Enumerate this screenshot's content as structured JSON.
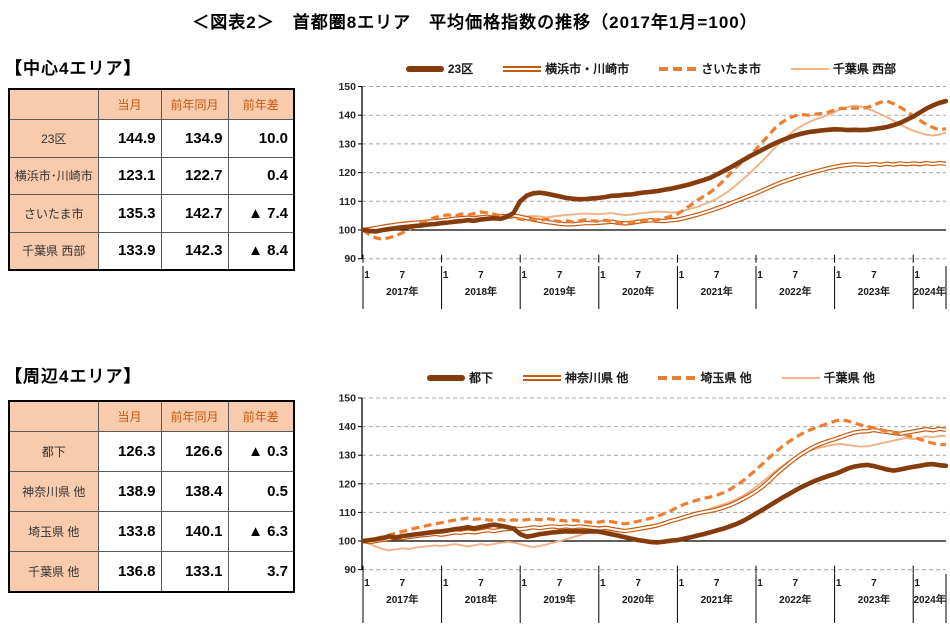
{
  "title": "＜図表2＞　首都圏8エリア　平均価格指数の推移（2017年1月=100）",
  "colors": {
    "thick_brown": "#843C0C",
    "double_orange": "#C55A11",
    "dashed_orange": "#ED7D31",
    "thin_peach": "#F4B183",
    "table_header_bg": "#F8CBAD",
    "table_header_text": "#C55A11",
    "grid_gray": "#A6A6A6",
    "baseline_black": "#000000"
  },
  "sections": [
    {
      "heading": "【中心4エリア】",
      "chart_index": 0,
      "table": {
        "headers": [
          "",
          "当月",
          "前年同月",
          "前年差"
        ],
        "rows": [
          {
            "label": "23区",
            "current": "144.9",
            "prev_year": "134.9",
            "diff": "10.0"
          },
          {
            "label": "横浜市･川崎市",
            "current": "123.1",
            "prev_year": "122.7",
            "diff": "0.4"
          },
          {
            "label": "さいたま市",
            "current": "135.3",
            "prev_year": "142.7",
            "diff": "▲ 7.4"
          },
          {
            "label": "千葉県 西部",
            "current": "133.9",
            "prev_year": "142.3",
            "diff": "▲ 8.4"
          }
        ]
      }
    },
    {
      "heading": "【周辺4エリア】",
      "chart_index": 1,
      "table": {
        "headers": [
          "",
          "当月",
          "前年同月",
          "前年差"
        ],
        "rows": [
          {
            "label": "都下",
            "current": "126.3",
            "prev_year": "126.6",
            "diff": "▲ 0.3"
          },
          {
            "label": "神奈川県 他",
            "current": "138.9",
            "prev_year": "138.4",
            "diff": "0.5"
          },
          {
            "label": "埼玉県 他",
            "current": "133.8",
            "prev_year": "140.1",
            "diff": "▲ 6.3"
          },
          {
            "label": "千葉県 他",
            "current": "136.8",
            "prev_year": "133.1",
            "diff": "3.7"
          }
        ]
      }
    }
  ],
  "chart_data": [
    {
      "type": "line",
      "title": "中心4エリア 平均価格指数",
      "x_interval": "monthly",
      "x_start": "2017-01",
      "x_end": "2024-06",
      "ylim": [
        90,
        150
      ],
      "y_ticks": [
        150,
        140,
        130,
        120,
        110,
        100,
        90
      ],
      "baseline": 100,
      "grid": "horizontal-dashed",
      "legend_position": "top",
      "x_month_ticks": [
        "1",
        "7"
      ],
      "x_year_labels": [
        "2017年",
        "2018年",
        "2019年",
        "2020年",
        "2021年",
        "2022年",
        "2023年",
        "2024年"
      ],
      "series": [
        {
          "name": "23区",
          "style": "thick",
          "color": "#843C0C",
          "values": [
            100.0,
            99.7,
            99.5,
            100.0,
            100.3,
            100.6,
            100.9,
            101.1,
            101.4,
            101.6,
            101.9,
            102.1,
            102.4,
            102.6,
            102.9,
            103.1,
            103.4,
            103.2,
            103.7,
            103.9,
            104.1,
            103.9,
            104.6,
            106.0,
            110.0,
            112.0,
            112.8,
            113.0,
            112.7,
            112.2,
            111.7,
            111.2,
            110.9,
            110.7,
            110.8,
            111.0,
            111.2,
            111.5,
            111.9,
            112.0,
            112.3,
            112.4,
            112.8,
            113.1,
            113.3,
            113.6,
            114.0,
            114.4,
            114.9,
            115.4,
            116.0,
            116.7,
            117.4,
            118.2,
            119.3,
            120.5,
            121.7,
            123.0,
            124.3,
            125.6,
            126.8,
            128.0,
            129.2,
            130.3,
            131.3,
            132.2,
            133.0,
            133.6,
            134.1,
            134.4,
            134.7,
            134.9,
            135.1,
            135.0,
            134.8,
            134.9,
            134.8,
            134.9,
            135.2,
            135.5,
            135.9,
            136.5,
            137.3,
            138.4,
            139.5,
            140.9,
            142.3,
            143.4,
            144.3,
            144.9
          ]
        },
        {
          "name": "横浜市・川崎市",
          "style": "double",
          "color": "#C55A11",
          "values": [
            100.0,
            100.3,
            100.7,
            101.1,
            101.5,
            101.8,
            102.1,
            102.3,
            102.5,
            102.7,
            102.9,
            103.1,
            103.3,
            103.6,
            103.9,
            104.1,
            104.3,
            104.0,
            104.4,
            104.6,
            104.3,
            104.7,
            104.9,
            105.1,
            104.6,
            104.1,
            103.6,
            103.2,
            102.8,
            102.5,
            102.2,
            102.0,
            102.0,
            102.2,
            102.4,
            102.4,
            102.5,
            102.7,
            102.9,
            102.5,
            102.3,
            102.5,
            102.9,
            103.2,
            103.4,
            103.2,
            103.1,
            103.4,
            103.6,
            104.1,
            104.7,
            105.3,
            106.0,
            106.7,
            107.5,
            108.3,
            109.2,
            110.1,
            111.0,
            111.9,
            112.8,
            113.8,
            114.8,
            115.8,
            116.7,
            117.5,
            118.3,
            119.0,
            119.7,
            120.3,
            120.9,
            121.5,
            122.0,
            122.4,
            122.7,
            122.9,
            122.8,
            122.7,
            123.0,
            122.7,
            123.1,
            122.8,
            123.2,
            122.9,
            123.2,
            122.9,
            123.3,
            123.0,
            123.3,
            123.1
          ]
        },
        {
          "name": "さいたま市",
          "style": "dashed",
          "color": "#ED7D31",
          "values": [
            100.0,
            98.3,
            97.2,
            96.8,
            97.3,
            98.0,
            99.0,
            100.2,
            101.4,
            102.6,
            103.6,
            104.4,
            104.9,
            105.3,
            104.9,
            105.6,
            105.2,
            105.8,
            106.3,
            106.0,
            105.5,
            105.0,
            104.6,
            104.2,
            103.8,
            103.5,
            103.8,
            103.4,
            103.7,
            103.3,
            102.9,
            103.3,
            102.8,
            103.2,
            103.6,
            103.2,
            103.0,
            103.4,
            103.0,
            102.5,
            102.2,
            102.6,
            103.1,
            103.5,
            103.2,
            103.6,
            104.1,
            104.8,
            105.5,
            107.0,
            108.6,
            110.3,
            111.7,
            113.1,
            114.9,
            117.1,
            119.5,
            121.9,
            123.9,
            125.9,
            128.2,
            130.7,
            133.2,
            135.7,
            137.6,
            139.0,
            139.8,
            140.2,
            140.0,
            140.3,
            140.6,
            141.0,
            141.8,
            142.4,
            142.2,
            142.5,
            142.4,
            142.7,
            143.6,
            144.5,
            144.9,
            144.0,
            142.8,
            141.4,
            139.8,
            138.2,
            136.8,
            135.7,
            134.9,
            135.3
          ]
        },
        {
          "name": "千葉県 西部",
          "style": "thin",
          "color": "#F4B183",
          "values": [
            100.0,
            100.4,
            100.9,
            101.4,
            101.9,
            102.3,
            102.6,
            102.9,
            103.0,
            103.2,
            103.4,
            103.6,
            103.8,
            104.1,
            104.4,
            104.7,
            104.5,
            104.8,
            105.0,
            104.7,
            104.5,
            104.3,
            104.2,
            104.3,
            104.4,
            104.7,
            104.9,
            104.7,
            104.4,
            104.7,
            105.0,
            105.2,
            105.4,
            105.6,
            105.7,
            105.6,
            105.5,
            105.7,
            105.9,
            105.5,
            105.2,
            105.4,
            105.7,
            106.0,
            106.2,
            106.4,
            106.3,
            106.1,
            106.3,
            106.8,
            107.4,
            108.1,
            108.9,
            109.8,
            110.9,
            112.3,
            113.9,
            115.7,
            117.7,
            119.7,
            121.9,
            124.1,
            126.5,
            128.9,
            131.1,
            133.1,
            134.9,
            136.3,
            137.5,
            138.5,
            139.3,
            140.1,
            141.1,
            142.1,
            142.9,
            143.3,
            143.1,
            142.3,
            141.4,
            140.4,
            139.3,
            138.1,
            136.8,
            135.6,
            134.6,
            133.8,
            133.2,
            132.9,
            133.3,
            133.9
          ]
        }
      ]
    },
    {
      "type": "line",
      "title": "周辺4エリア 平均価格指数",
      "x_interval": "monthly",
      "x_start": "2017-01",
      "x_end": "2024-06",
      "ylim": [
        90,
        150
      ],
      "y_ticks": [
        150,
        140,
        130,
        120,
        110,
        100,
        90
      ],
      "baseline": 100,
      "grid": "horizontal-dashed",
      "legend_position": "top",
      "x_month_ticks": [
        "1",
        "7"
      ],
      "x_year_labels": [
        "2017年",
        "2018年",
        "2019年",
        "2020年",
        "2021年",
        "2022年",
        "2023年",
        "2024年"
      ],
      "series": [
        {
          "name": "都下",
          "style": "thick",
          "color": "#843C0C",
          "values": [
            100.0,
            100.3,
            100.6,
            101.0,
            101.6,
            101.2,
            101.7,
            102.0,
            102.3,
            102.6,
            102.9,
            103.2,
            103.4,
            103.7,
            104.1,
            104.4,
            104.8,
            104.4,
            104.9,
            105.3,
            105.7,
            105.3,
            104.9,
            104.3,
            102.4,
            101.5,
            101.9,
            102.4,
            102.7,
            103.0,
            103.2,
            103.4,
            103.3,
            103.4,
            103.3,
            103.4,
            103.3,
            102.8,
            102.3,
            101.9,
            101.3,
            100.8,
            100.3,
            100.0,
            99.6,
            99.5,
            99.8,
            100.1,
            100.3,
            100.8,
            101.3,
            101.9,
            102.4,
            103.0,
            103.7,
            104.3,
            105.1,
            105.9,
            107.0,
            108.2,
            109.6,
            110.9,
            112.3,
            113.7,
            115.1,
            116.4,
            117.7,
            118.9,
            120.0,
            121.0,
            121.9,
            122.7,
            123.4,
            124.3,
            125.3,
            126.0,
            126.4,
            126.6,
            126.2,
            125.6,
            125.0,
            124.6,
            125.0,
            125.5,
            125.9,
            126.3,
            126.7,
            126.9,
            126.5,
            126.3
          ]
        },
        {
          "name": "神奈川県 他",
          "style": "double",
          "color": "#C55A11",
          "values": [
            100.0,
            99.6,
            100.0,
            100.4,
            100.8,
            101.1,
            101.0,
            101.4,
            101.7,
            102.0,
            102.2,
            102.5,
            102.2,
            102.6,
            103.0,
            102.9,
            103.3,
            103.0,
            103.4,
            103.8,
            103.5,
            103.9,
            104.2,
            104.4,
            104.1,
            104.4,
            104.8,
            104.5,
            104.9,
            105.1,
            104.8,
            105.1,
            104.8,
            105.1,
            104.9,
            104.6,
            104.3,
            104.6,
            104.2,
            103.8,
            103.5,
            103.8,
            104.2,
            104.6,
            105.0,
            105.5,
            106.2,
            107.0,
            107.6,
            108.3,
            109.0,
            109.6,
            110.1,
            110.5,
            111.0,
            111.7,
            112.5,
            113.5,
            114.7,
            115.9,
            117.3,
            119.0,
            121.0,
            123.2,
            125.2,
            127.1,
            128.9,
            130.5,
            131.9,
            133.1,
            134.1,
            134.9,
            135.6,
            136.4,
            137.2,
            137.9,
            138.3,
            138.4,
            138.8,
            138.4,
            138.1,
            137.8,
            137.5,
            137.9,
            138.3,
            138.7,
            139.1,
            138.7,
            139.2,
            138.9
          ]
        },
        {
          "name": "埼玉県 他",
          "style": "dashed",
          "color": "#ED7D31",
          "values": [
            100.0,
            100.4,
            100.9,
            101.5,
            102.1,
            102.7,
            103.3,
            103.9,
            104.5,
            105.0,
            105.5,
            106.0,
            106.4,
            106.9,
            107.3,
            107.7,
            108.0,
            107.6,
            107.8,
            107.4,
            107.2,
            107.5,
            107.1,
            107.4,
            107.1,
            107.5,
            107.7,
            107.4,
            107.9,
            107.5,
            107.2,
            107.0,
            107.3,
            107.0,
            106.7,
            106.5,
            106.6,
            107.0,
            106.7,
            106.3,
            106.0,
            106.4,
            106.9,
            107.4,
            108.0,
            108.7,
            109.6,
            110.6,
            111.8,
            112.8,
            113.6,
            114.3,
            114.9,
            115.4,
            116.0,
            116.9,
            118.0,
            119.4,
            121.0,
            122.9,
            124.9,
            127.0,
            129.1,
            131.1,
            133.0,
            134.7,
            136.2,
            137.5,
            138.6,
            139.5,
            140.3,
            141.1,
            141.9,
            142.4,
            142.0,
            141.2,
            140.6,
            140.1,
            139.5,
            138.9,
            138.4,
            138.0,
            137.5,
            137.0,
            136.4,
            135.6,
            134.8,
            134.2,
            133.6,
            133.8
          ]
        },
        {
          "name": "千葉県 他",
          "style": "thin",
          "color": "#F4B183",
          "values": [
            100.0,
            99.0,
            98.0,
            97.2,
            96.7,
            97.1,
            97.4,
            97.2,
            97.7,
            97.9,
            98.2,
            98.5,
            98.2,
            98.6,
            98.9,
            98.5,
            98.1,
            98.5,
            98.9,
            98.6,
            99.0,
            99.4,
            99.7,
            99.5,
            98.9,
            98.3,
            97.9,
            98.3,
            98.8,
            99.4,
            100.0,
            100.6,
            101.3,
            102.0,
            102.7,
            103.1,
            103.4,
            103.7,
            103.5,
            103.2,
            103.6,
            103.9,
            104.1,
            104.4,
            104.8,
            105.3,
            105.9,
            106.6,
            107.3,
            108.0,
            108.8,
            109.6,
            110.4,
            111.3,
            112.1,
            112.8,
            113.6,
            114.6,
            115.8,
            117.2,
            118.9,
            120.7,
            122.6,
            124.5,
            126.2,
            127.8,
            129.2,
            130.4,
            131.4,
            132.2,
            132.8,
            133.3,
            133.7,
            133.9,
            133.6,
            133.2,
            133.0,
            133.1,
            133.6,
            134.1,
            134.6,
            135.1,
            135.6,
            136.1,
            135.6,
            136.1,
            136.6,
            136.3,
            136.7,
            136.8
          ]
        }
      ]
    }
  ]
}
